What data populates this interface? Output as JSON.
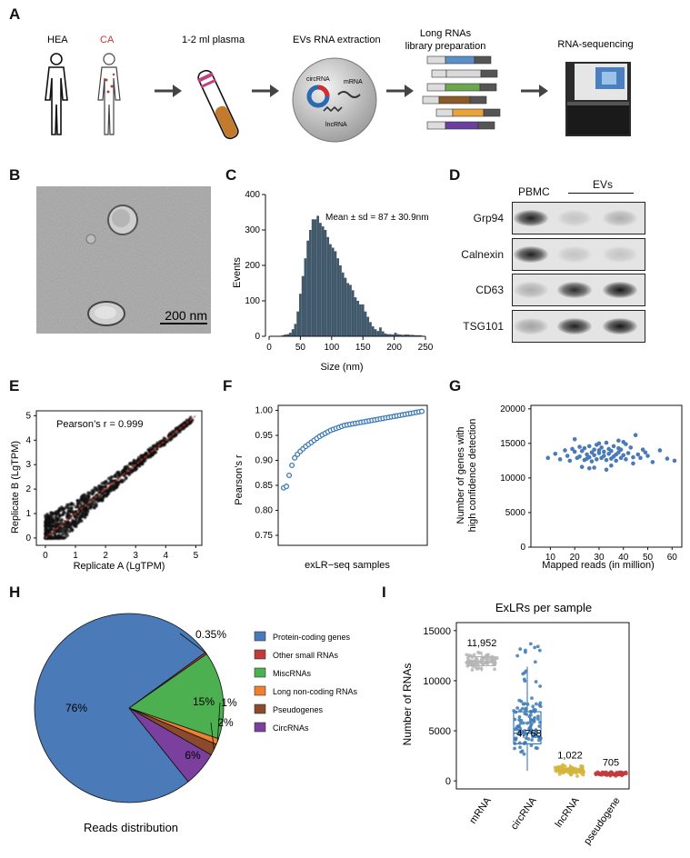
{
  "panel_labels": {
    "A": "A",
    "B": "B",
    "C": "C",
    "D": "D",
    "E": "E",
    "F": "F",
    "G": "G",
    "H": "H",
    "I": "I"
  },
  "panelA": {
    "hea": "HEA",
    "ca": "CA",
    "plasma": "1-2 ml plasma",
    "extraction": "EVs RNA extraction",
    "library_l1": "Long RNAs",
    "library_l2": "library preparation",
    "sequencing": "RNA-sequencing",
    "circ": "circRNA",
    "mrna": "mRNA",
    "lnc": "lncRNA",
    "colors": {
      "ca": "#c0392b",
      "tube": "#c47a2c"
    }
  },
  "panelB": {
    "scale": "200 nm"
  },
  "panelD": {
    "pbmc": "PBMC",
    "evs": "EVs",
    "bands": [
      "Grp94",
      "Calnexin",
      "CD63",
      "TSG101"
    ],
    "intensity": [
      [
        0.9,
        0.15,
        0.25
      ],
      [
        0.9,
        0.15,
        0.15
      ],
      [
        0.25,
        0.85,
        0.95
      ],
      [
        0.3,
        0.9,
        0.95
      ]
    ]
  },
  "chart_data": [
    {
      "panel": "C",
      "type": "bar",
      "annotation": "Mean ± sd = 87 ± 30.9nm",
      "xlabel": "Size (nm)",
      "ylabel": "Events",
      "xlim": [
        0,
        250
      ],
      "ylim": [
        0,
        400
      ],
      "xticks": [
        "0",
        "50",
        "100",
        "150",
        "200",
        "250"
      ],
      "yticks": [
        "0",
        "100",
        "200",
        "300",
        "400"
      ],
      "x": [
        22,
        26,
        30,
        34,
        38,
        42,
        46,
        50,
        54,
        58,
        62,
        66,
        70,
        74,
        78,
        82,
        86,
        90,
        94,
        98,
        102,
        106,
        110,
        114,
        118,
        122,
        126,
        130,
        134,
        138,
        142,
        146,
        150,
        154,
        158,
        162,
        166,
        170,
        174,
        178,
        182,
        186,
        190,
        194,
        198,
        202,
        206,
        210,
        214,
        218,
        222,
        226,
        230,
        234,
        238,
        242
      ],
      "values": [
        3,
        5,
        6,
        10,
        20,
        35,
        70,
        120,
        170,
        220,
        270,
        300,
        330,
        330,
        340,
        320,
        310,
        300,
        280,
        260,
        250,
        240,
        220,
        200,
        180,
        165,
        150,
        145,
        130,
        110,
        100,
        90,
        90,
        70,
        55,
        40,
        28,
        20,
        15,
        25,
        14,
        8,
        6,
        6,
        5,
        10,
        6,
        5,
        4,
        5,
        5,
        4,
        4,
        3,
        3,
        3
      ]
    },
    {
      "panel": "D",
      "type": "table",
      "columns": [
        "PBMC",
        "EVs",
        "EVs"
      ],
      "rows": [
        "Grp94",
        "Calnexin",
        "CD63",
        "TSG101"
      ]
    },
    {
      "panel": "E",
      "type": "scatter",
      "annotation": "Pearson’s r = 0.999",
      "xlabel": "Replicate A (LgTPM)",
      "ylabel": "Replicate B (LgTPM)",
      "xlim": [
        -0.3,
        5.2
      ],
      "ylim": [
        -0.3,
        5.2
      ],
      "xticks": [
        "0",
        "1",
        "2",
        "3",
        "4",
        "5"
      ],
      "yticks": [
        "0",
        "1",
        "2",
        "3",
        "4",
        "5"
      ]
    },
    {
      "panel": "F",
      "type": "scatter",
      "xlabel": "exLR−seq samples",
      "ylabel": "Pearson’s r",
      "ylim": [
        0.73,
        1.01
      ],
      "yticks": [
        "0.75",
        "0.80",
        "0.85",
        "0.90",
        "0.95",
        "1.00"
      ],
      "values": [
        0.845,
        0.848,
        0.87,
        0.89,
        0.905,
        0.912,
        0.918,
        0.923,
        0.928,
        0.932,
        0.936,
        0.94,
        0.944,
        0.948,
        0.951,
        0.954,
        0.957,
        0.96,
        0.962,
        0.964,
        0.966,
        0.968,
        0.97,
        0.971,
        0.972,
        0.973,
        0.974,
        0.975,
        0.976,
        0.977,
        0.978,
        0.979,
        0.98,
        0.981,
        0.982,
        0.983,
        0.984,
        0.985,
        0.986,
        0.987,
        0.988,
        0.989,
        0.99,
        0.991,
        0.992,
        0.993,
        0.994,
        0.995,
        0.996,
        0.997,
        0.998
      ]
    },
    {
      "panel": "G",
      "type": "scatter",
      "xlabel": "Mapped reads (in million)",
      "ylabel_l1": "Number of genes with",
      "ylabel_l2": "high confidence detection",
      "xlim": [
        2,
        64
      ],
      "ylim": [
        0,
        20500
      ],
      "xticks": [
        "10",
        "20",
        "30",
        "40",
        "50",
        "60"
      ],
      "yticks": [
        "0",
        "5000",
        "10000",
        "15000",
        "20000"
      ],
      "x": [
        9,
        12,
        14,
        16,
        17,
        18,
        19,
        20,
        21,
        22,
        22,
        23,
        24,
        24,
        25,
        25,
        26,
        26,
        27,
        27,
        28,
        28,
        29,
        29,
        30,
        30,
        31,
        31,
        32,
        32,
        33,
        33,
        34,
        34,
        35,
        35,
        36,
        36,
        37,
        37,
        38,
        38,
        39,
        39,
        40,
        40,
        41,
        42,
        43,
        44,
        45,
        46,
        47,
        48,
        49,
        50,
        52,
        55,
        58,
        61,
        20,
        26,
        33,
        38,
        44,
        23,
        30,
        35,
        41,
        28
      ],
      "y": [
        12900,
        13500,
        12700,
        14000,
        13200,
        12500,
        14200,
        13800,
        12900,
        14500,
        13100,
        13900,
        12600,
        14300,
        13400,
        12800,
        14600,
        13000,
        13700,
        12400,
        14100,
        13300,
        14800,
        12700,
        13600,
        14000,
        12900,
        14400,
        13200,
        13800,
        15100,
        12600,
        13500,
        14200,
        12800,
        13900,
        14600,
        13100,
        13400,
        12500,
        14300,
        13700,
        12900,
        14100,
        13300,
        15200,
        12700,
        13600,
        14400,
        13000,
        16200,
        13400,
        12900,
        14100,
        13700,
        13200,
        12300,
        14000,
        12800,
        12500,
        15600,
        11400,
        11200,
        15400,
        12100,
        11600,
        15000,
        11800,
        14900,
        11500
      ]
    },
    {
      "panel": "H",
      "type": "pie",
      "xlabel": "Reads distribution",
      "categories": [
        "Protein-coding genes",
        "Other small RNAs",
        "MiscRNAs",
        "Long non-coding RNAs",
        "Pseudogenes",
        "CircRNAs"
      ],
      "values": [
        76,
        0.35,
        15,
        1,
        2,
        6
      ],
      "slice_labels": [
        "76%",
        "0.35%",
        "15%",
        "1%",
        "2%",
        "6%"
      ],
      "colors": [
        "#4a7ab8",
        "#c23b3b",
        "#4caf50",
        "#f08030",
        "#8b4a2b",
        "#7b3f9e"
      ]
    },
    {
      "panel": "I",
      "type": "scatter",
      "title": "ExLRs per sample",
      "ylabel": "Number of RNAs",
      "categories": [
        "mRNA",
        "circRNA",
        "lncRNA",
        "pseudogene"
      ],
      "medians": [
        11952,
        4768,
        1022,
        705
      ],
      "median_labels": [
        "11,952",
        "4,768",
        "1,022",
        "705"
      ],
      "ylim": [
        -800,
        15800
      ],
      "yticks": [
        "0",
        "5000",
        "10000",
        "15000"
      ],
      "colors": [
        "#b5b5b5",
        "#3d7ab5",
        "#d4b43a",
        "#c23b3b"
      ],
      "quartiles": [
        [
          11500,
          12400
        ],
        [
          3700,
          6900
        ],
        [
          850,
          1200
        ],
        [
          630,
          780
        ]
      ],
      "whiskers": [
        [
          10900,
          12900
        ],
        [
          1000,
          11400
        ],
        [
          600,
          1700
        ],
        [
          450,
          950
        ]
      ]
    }
  ]
}
